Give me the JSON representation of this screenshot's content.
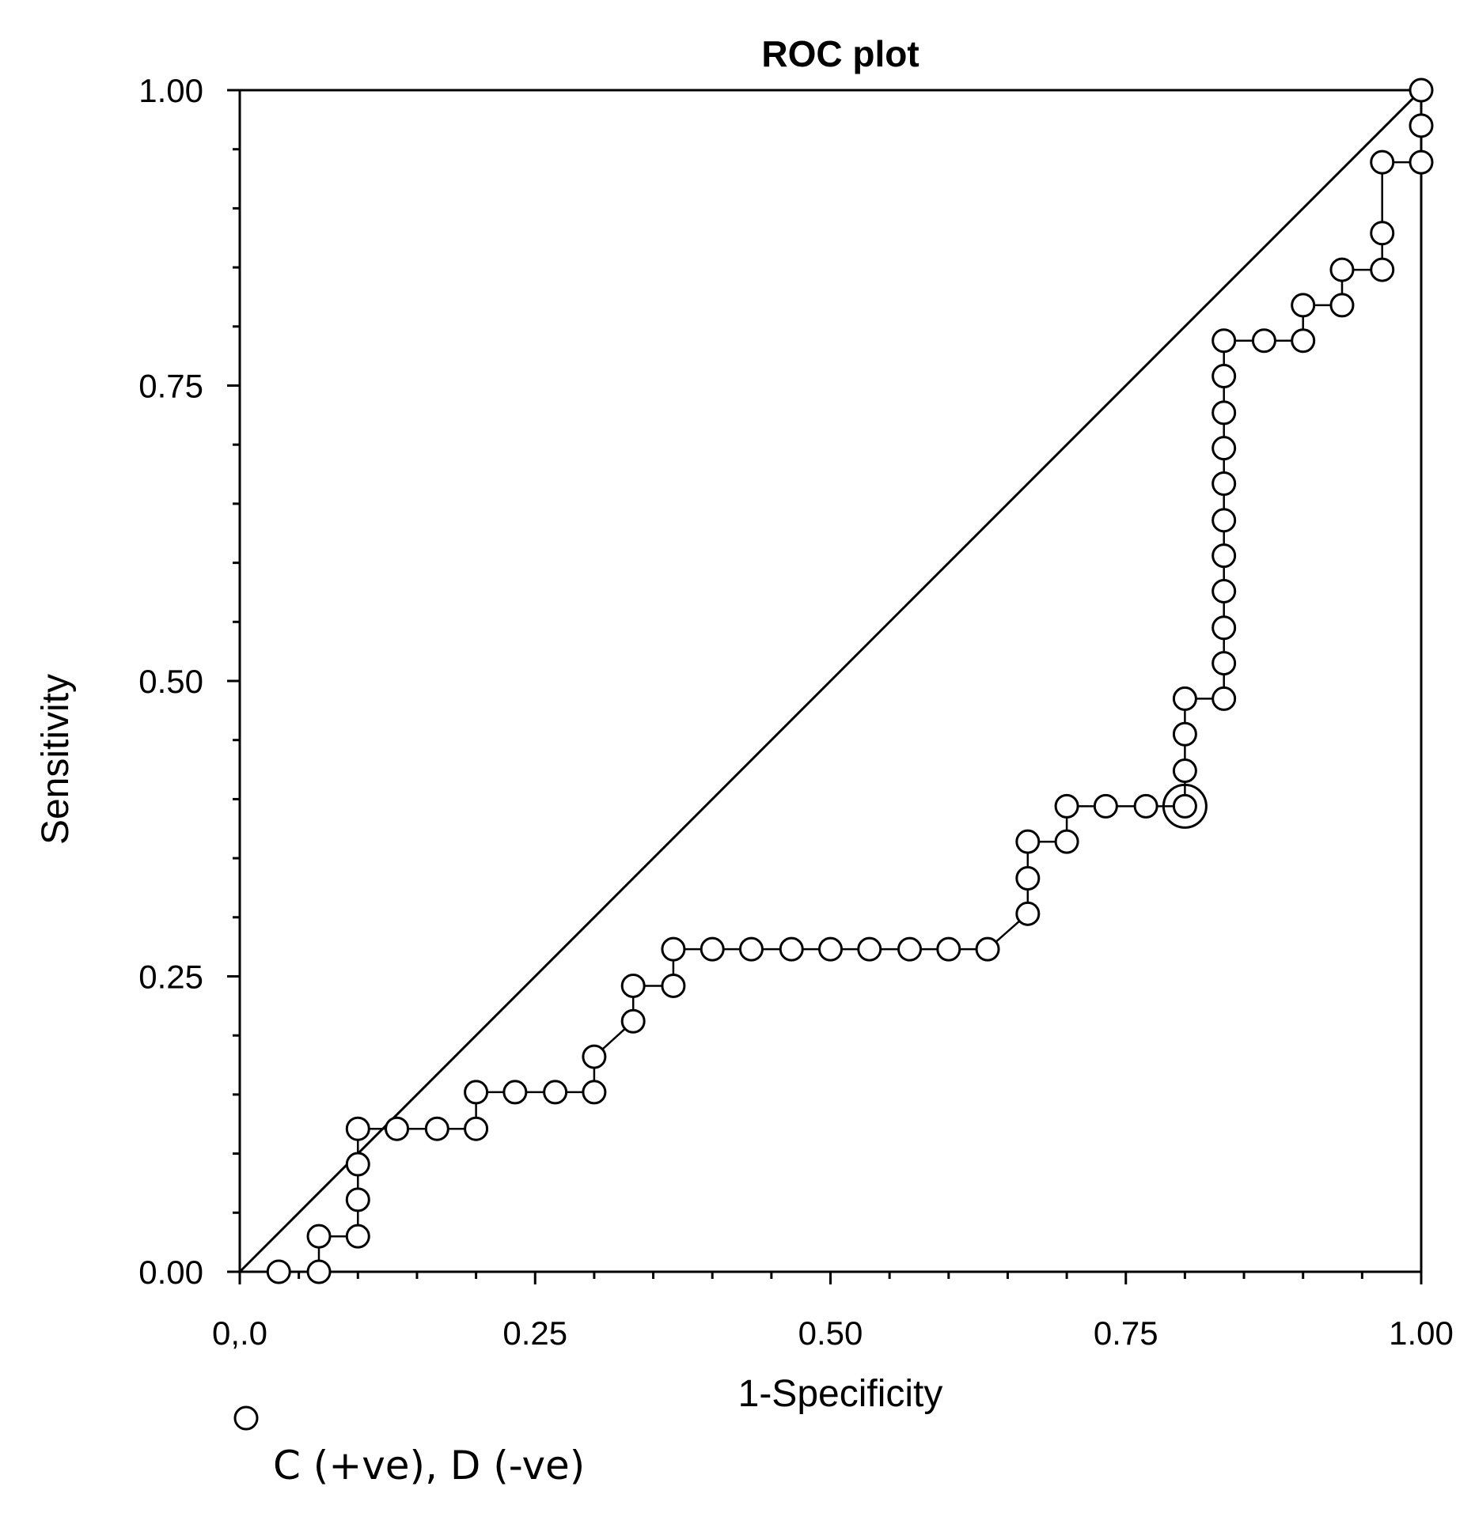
{
  "chart_data": {
    "type": "scatter",
    "title": "ROC plot",
    "xlabel": "1-Specificity",
    "ylabel": "Sensitivity",
    "xlim": [
      0,
      1
    ],
    "ylim": [
      0,
      1
    ],
    "x_tick_labels": [
      "0,.0",
      "0.25",
      "0.50",
      "0.75",
      "1.00"
    ],
    "y_tick_labels": [
      "0.00",
      "0.25",
      "0.50",
      "0.75",
      "1.00"
    ],
    "x_ticks": [
      0,
      0.25,
      0.5,
      0.75,
      1.0
    ],
    "y_ticks": [
      0,
      0.25,
      0.5,
      0.75,
      1.0
    ],
    "legend": {
      "label": "C (+ve), D (-ve)",
      "marker": "open-circle",
      "position": "bottom-left"
    },
    "reference_line": {
      "from": [
        0,
        0
      ],
      "to": [
        1,
        1
      ]
    },
    "highlighted_point": [
      0.8,
      0.394
    ],
    "series": [
      {
        "name": "C (+ve), D (-ve)",
        "points": [
          [
            0.033,
            0.0
          ],
          [
            0.067,
            0.0
          ],
          [
            0.067,
            0.03
          ],
          [
            0.1,
            0.03
          ],
          [
            0.1,
            0.061
          ],
          [
            0.1,
            0.091
          ],
          [
            0.1,
            0.121
          ],
          [
            0.133,
            0.121
          ],
          [
            0.167,
            0.121
          ],
          [
            0.2,
            0.121
          ],
          [
            0.2,
            0.152
          ],
          [
            0.233,
            0.152
          ],
          [
            0.267,
            0.152
          ],
          [
            0.3,
            0.152
          ],
          [
            0.3,
            0.182
          ],
          [
            0.333,
            0.212
          ],
          [
            0.333,
            0.242
          ],
          [
            0.367,
            0.242
          ],
          [
            0.367,
            0.273
          ],
          [
            0.4,
            0.273
          ],
          [
            0.433,
            0.273
          ],
          [
            0.467,
            0.273
          ],
          [
            0.5,
            0.273
          ],
          [
            0.533,
            0.273
          ],
          [
            0.567,
            0.273
          ],
          [
            0.6,
            0.273
          ],
          [
            0.633,
            0.273
          ],
          [
            0.667,
            0.303
          ],
          [
            0.667,
            0.333
          ],
          [
            0.667,
            0.364
          ],
          [
            0.7,
            0.364
          ],
          [
            0.7,
            0.394
          ],
          [
            0.733,
            0.394
          ],
          [
            0.767,
            0.394
          ],
          [
            0.8,
            0.394
          ],
          [
            0.8,
            0.424
          ],
          [
            0.8,
            0.455
          ],
          [
            0.8,
            0.485
          ],
          [
            0.833,
            0.485
          ],
          [
            0.833,
            0.515
          ],
          [
            0.833,
            0.545
          ],
          [
            0.833,
            0.576
          ],
          [
            0.833,
            0.606
          ],
          [
            0.833,
            0.636
          ],
          [
            0.833,
            0.667
          ],
          [
            0.833,
            0.697
          ],
          [
            0.833,
            0.727
          ],
          [
            0.833,
            0.758
          ],
          [
            0.833,
            0.788
          ],
          [
            0.867,
            0.788
          ],
          [
            0.9,
            0.788
          ],
          [
            0.9,
            0.818
          ],
          [
            0.933,
            0.818
          ],
          [
            0.933,
            0.848
          ],
          [
            0.967,
            0.848
          ],
          [
            0.967,
            0.879
          ],
          [
            0.967,
            0.939
          ],
          [
            1.0,
            0.939
          ],
          [
            1.0,
            0.97
          ],
          [
            1.0,
            1.0
          ]
        ]
      }
    ]
  }
}
